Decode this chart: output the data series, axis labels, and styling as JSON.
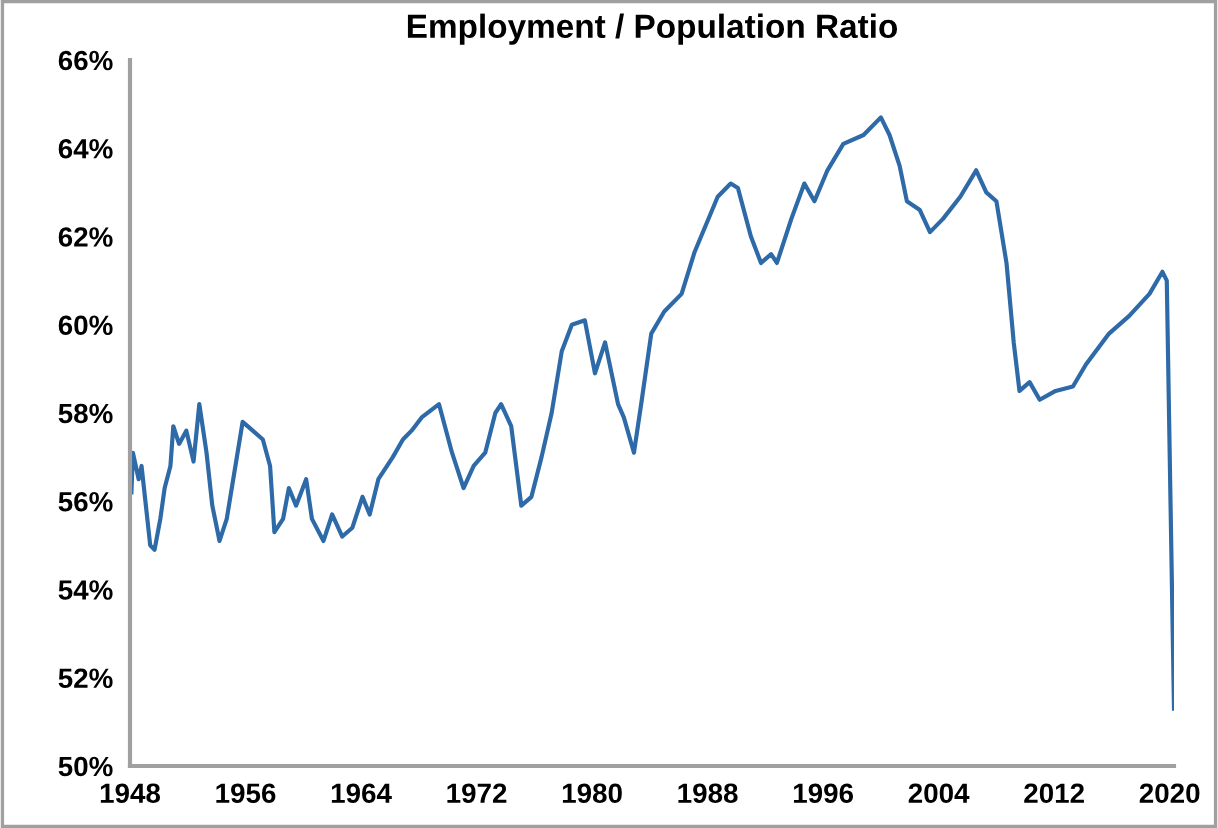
{
  "chart_data": {
    "type": "line",
    "title": "Employment / Population Ratio",
    "x": [
      1948.1,
      1948.2,
      1948.6,
      1948.8,
      1949.4,
      1949.7,
      1950.1,
      1950.4,
      1950.8,
      1951.0,
      1951.4,
      1951.9,
      1952.4,
      1952.8,
      1953.3,
      1953.7,
      1954.2,
      1954.7,
      1955.4,
      1955.8,
      1956.5,
      1957.2,
      1957.7,
      1958.0,
      1958.6,
      1959.0,
      1959.5,
      1960.2,
      1960.6,
      1961.4,
      1962.0,
      1962.7,
      1963.4,
      1964.1,
      1964.6,
      1965.2,
      1966.2,
      1966.9,
      1967.5,
      1968.2,
      1969.4,
      1970.3,
      1971.1,
      1971.8,
      1972.6,
      1973.3,
      1973.7,
      1974.4,
      1975.1,
      1975.8,
      1976.5,
      1977.2,
      1977.9,
      1978.6,
      1979.5,
      1980.2,
      1980.9,
      1981.8,
      1982.2,
      1982.9,
      1983.4,
      1984.1,
      1985.0,
      1986.2,
      1987.1,
      1988.7,
      1989.6,
      1990.1,
      1991.0,
      1991.7,
      1992.4,
      1992.8,
      1993.8,
      1994.7,
      1995.4,
      1996.3,
      1997.4,
      1998.8,
      2000.0,
      2000.6,
      2001.3,
      2001.8,
      2002.7,
      2003.4,
      2004.3,
      2005.5,
      2006.6,
      2007.3,
      2008.0,
      2008.7,
      2009.2,
      2009.6,
      2010.3,
      2011.0,
      2012.1,
      2013.3,
      2014.2,
      2015.8,
      2017.2,
      2018.6,
      2019.5,
      2019.8,
      2020.3
    ],
    "series": [
      {
        "color": "#2e6aa8",
        "values": [
          56.2,
          57.1,
          56.5,
          56.8,
          55.0,
          54.9,
          55.6,
          56.3,
          56.8,
          57.7,
          57.3,
          57.6,
          56.9,
          58.2,
          57.1,
          55.9,
          55.1,
          55.6,
          57.0,
          57.8,
          57.6,
          57.4,
          56.8,
          55.3,
          55.6,
          56.3,
          55.9,
          56.5,
          55.6,
          55.1,
          55.7,
          55.2,
          55.4,
          56.1,
          55.7,
          56.5,
          57.0,
          57.4,
          57.6,
          57.9,
          58.2,
          57.1,
          56.3,
          56.8,
          57.1,
          58.0,
          58.2,
          57.7,
          55.9,
          56.1,
          57.0,
          58.0,
          59.4,
          60.0,
          60.1,
          58.9,
          59.6,
          58.2,
          57.9,
          57.1,
          58.2,
          59.8,
          60.3,
          60.7,
          61.65,
          62.9,
          63.2,
          63.1,
          62.0,
          61.4,
          61.6,
          61.4,
          62.4,
          63.2,
          62.8,
          63.5,
          64.1,
          64.3,
          64.7,
          64.3,
          63.6,
          62.8,
          62.6,
          62.1,
          62.4,
          62.9,
          63.5,
          63.0,
          62.8,
          61.4,
          59.6,
          58.5,
          58.7,
          58.3,
          58.5,
          58.6,
          59.1,
          59.8,
          60.2,
          60.7,
          61.2,
          61.0,
          51.3
        ]
      }
    ],
    "xlim": [
      1948,
      2020.3
    ],
    "xticks": [
      1948,
      1956,
      1964,
      1972,
      1980,
      1988,
      1996,
      2004,
      2012,
      2020
    ],
    "ylim": [
      50,
      66
    ],
    "yticks": [
      {
        "value": 50,
        "label": "50%"
      },
      {
        "value": 52,
        "label": "52%"
      },
      {
        "value": 54,
        "label": "54%"
      },
      {
        "value": 56,
        "label": "56%"
      },
      {
        "value": 58,
        "label": "58%"
      },
      {
        "value": 60,
        "label": "60%"
      },
      {
        "value": 62,
        "label": "62%"
      },
      {
        "value": 64,
        "label": "64%"
      },
      {
        "value": 66,
        "label": "66%"
      }
    ],
    "grid": false,
    "legend": false
  }
}
